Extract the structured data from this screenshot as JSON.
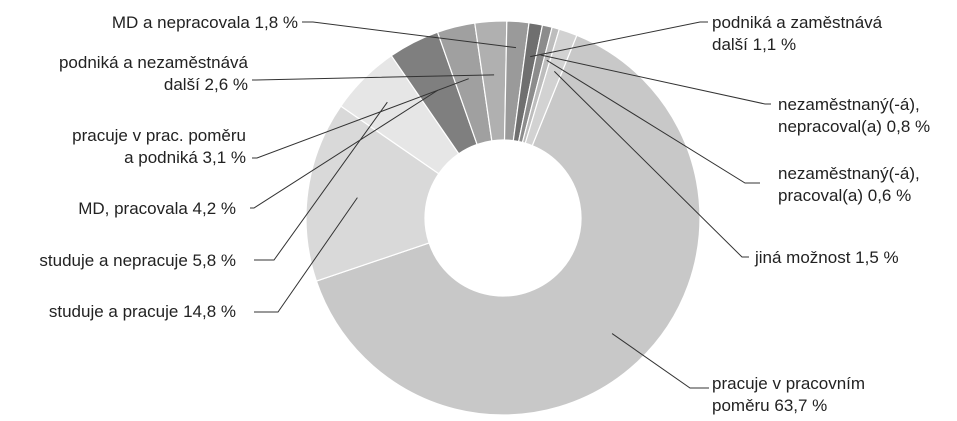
{
  "chart_data": {
    "type": "pie",
    "variant": "donut",
    "title": "",
    "start_angle_deg": 0,
    "direction": "clockwise",
    "slices": [
      {
        "label": "pracuje v pracovním poměru 63,7 %",
        "lines": [
          "pracuje v pracovním",
          "poměru 63,7 %"
        ],
        "value": 63.7,
        "color": "#c8c8c8"
      },
      {
        "label": "studuje a pracuje 14,8 %",
        "lines": [
          "studuje a pracuje 14,8 %"
        ],
        "value": 14.8,
        "color": "#d9d9d9"
      },
      {
        "label": "studuje a nepracuje 5,8 %",
        "lines": [
          "studuje a nepracuje 5,8 %"
        ],
        "value": 5.8,
        "color": "#e6e6e6"
      },
      {
        "label": "MD, pracovala 4,2 %",
        "lines": [
          "MD, pracovala 4,2 %"
        ],
        "value": 4.2,
        "color": "#7f7f7f"
      },
      {
        "label": "pracuje v prac. poměru a podniká 3,1 %",
        "lines": [
          "pracuje v prac. poměru",
          "a podniká 3,1 %"
        ],
        "value": 3.1,
        "color": "#a0a0a0"
      },
      {
        "label": "podniká a nezaměstnává další 2,6 %",
        "lines": [
          "podniká a nezaměstnává",
          "další 2,6 %"
        ],
        "value": 2.6,
        "color": "#b0b0b0"
      },
      {
        "label": "MD a nepracovala 1,8 %",
        "lines": [
          "MD a nepracovala 1,8 %"
        ],
        "value": 1.8,
        "color": "#9a9a9a"
      },
      {
        "label": "podniká a zaměstnává další 1,1 %",
        "lines": [
          "podniká a zaměstnává",
          "další 1,1 %"
        ],
        "value": 1.1,
        "color": "#6f6f6f"
      },
      {
        "label": "nezaměstnaný(-á), nepracoval(a) 0,8 %",
        "lines": [
          "nezaměstnaný(-á),",
          "nepracoval(a) 0,8 %"
        ],
        "value": 0.8,
        "color": "#8c8c8c"
      },
      {
        "label": "nezaměstnaný(-á), pracoval(a) 0,6 %",
        "lines": [
          "nezaměstnaný(-á),",
          "pracoval(a) 0,6 %"
        ],
        "value": 0.6,
        "color": "#bdbdbd"
      },
      {
        "label": "jiná možnost 1,5 %",
        "lines": [
          "jiná možnost 1,5 %"
        ],
        "value": 1.5,
        "color": "#d2d2d2"
      }
    ]
  }
}
